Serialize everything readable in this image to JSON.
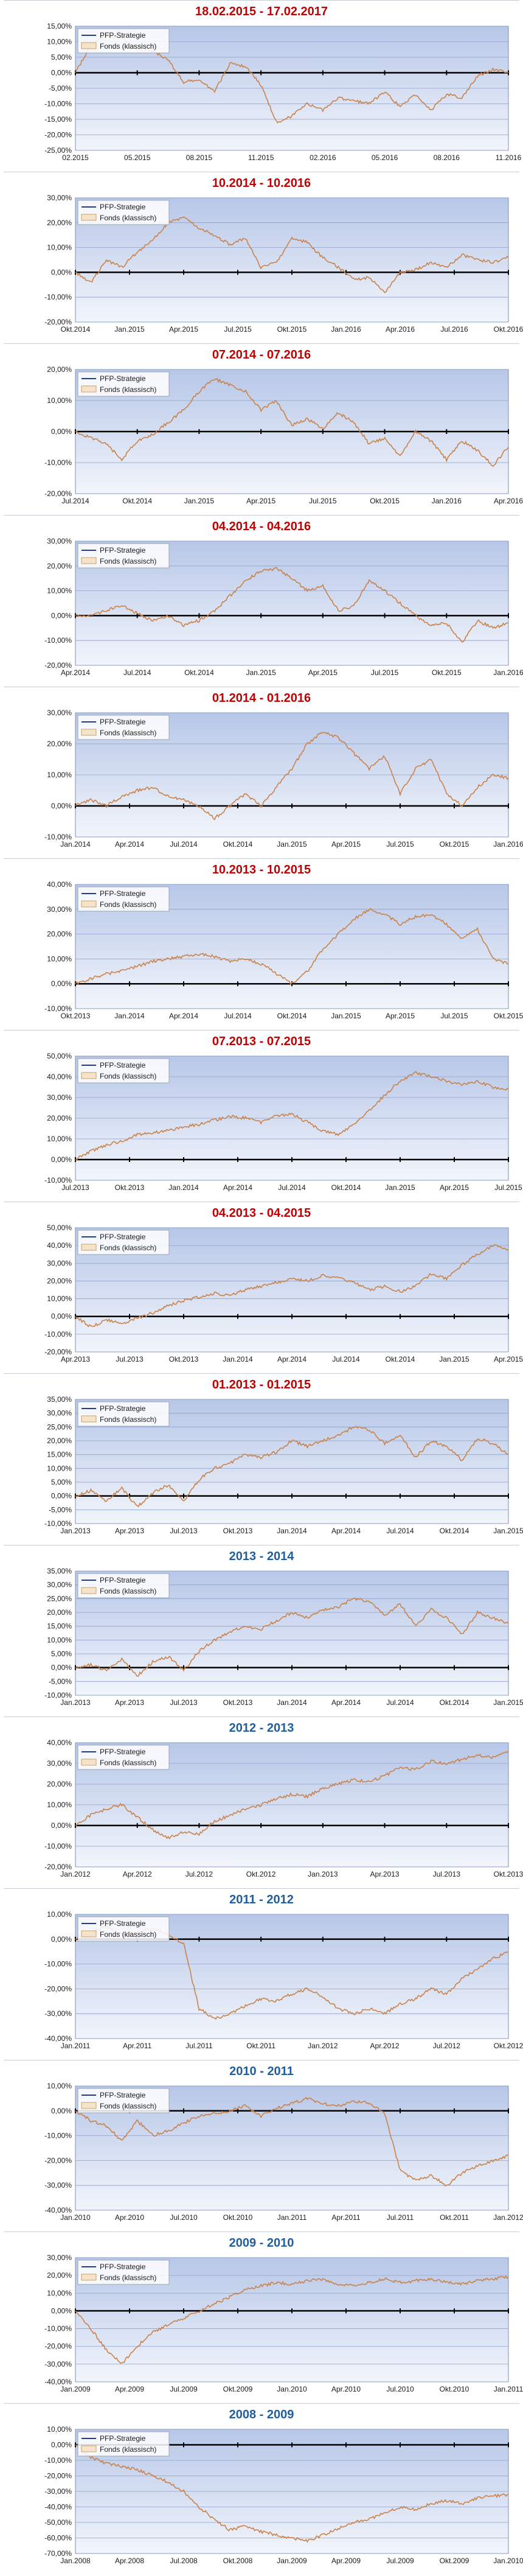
{
  "legend": [
    "PFP-Strategie",
    "Fonds (klassisch)"
  ],
  "colors": {
    "title_recent": "#c00000",
    "title_yearly": "#1f5fa0",
    "series_line": "#c9824a",
    "strategy_line": "#1f3d8a",
    "zero_line": "#000000",
    "grid": "#8ea1c9"
  },
  "chart_data": [
    {
      "type": "line",
      "title": "18.02.2015 - 17.02.2017",
      "title_color": "title_recent",
      "ylim": [
        -25,
        15
      ],
      "step": 5,
      "decimals": 2,
      "xticks": [
        "02.2015",
        "05.2015",
        "08.2015",
        "11.2015",
        "02.2016",
        "05.2016",
        "08.2016",
        "11.2016"
      ],
      "series": [
        {
          "values": [
            0,
            9,
            12,
            11,
            8,
            7,
            4,
            -3,
            -2,
            -6,
            3,
            2,
            -4,
            -16,
            -14,
            -10,
            -12,
            -8,
            -9,
            -10,
            -6,
            -11,
            -7,
            -12,
            -7,
            -8,
            -1,
            1,
            0
          ]
        }
      ]
    },
    {
      "type": "line",
      "title": "10.2014 - 10.2016",
      "title_color": "title_recent",
      "ylim": [
        -20,
        30
      ],
      "step": 10,
      "decimals": 2,
      "xticks": [
        "Okt.2014",
        "Jan.2015",
        "Apr.2015",
        "Jul.2015",
        "Okt.2015",
        "Jan.2016",
        "Apr.2016",
        "Jul.2016",
        "Okt.2016"
      ],
      "series": [
        {
          "values": [
            0,
            -4,
            5,
            2,
            8,
            13,
            20,
            22,
            18,
            15,
            11,
            14,
            2,
            4,
            14,
            12,
            6,
            2,
            -3,
            -2,
            -8,
            0,
            1,
            4,
            2,
            7,
            5,
            4,
            6
          ]
        }
      ]
    },
    {
      "type": "line",
      "title": "07.2014 - 07.2016",
      "title_color": "title_recent",
      "ylim": [
        -20,
        20
      ],
      "step": 10,
      "decimals": 2,
      "xticks": [
        "Jul.2014",
        "Okt.2014",
        "Jan.2015",
        "Apr.2015",
        "Jul.2015",
        "Okt.2015",
        "Jan.2016",
        "Apr.2016"
      ],
      "series": [
        {
          "values": [
            0,
            -2,
            -4,
            -9,
            -3,
            -1,
            3,
            7,
            13,
            17,
            15,
            13,
            7,
            10,
            2,
            4,
            1,
            6,
            3,
            -4,
            -2,
            -8,
            0,
            -3,
            -9,
            -3,
            -6,
            -11,
            -5
          ]
        }
      ]
    },
    {
      "type": "line",
      "title": "04.2014 - 04.2016",
      "title_color": "title_recent",
      "ylim": [
        -20,
        30
      ],
      "step": 10,
      "decimals": 2,
      "xticks": [
        "Apr.2014",
        "Jul.2014",
        "Okt.2014",
        "Jan.2015",
        "Apr.2015",
        "Jul.2015",
        "Okt.2015",
        "Jan.2016"
      ],
      "series": [
        {
          "values": [
            0,
            0,
            2,
            4,
            1,
            -2,
            0,
            -4,
            -2,
            2,
            8,
            14,
            18,
            19,
            15,
            10,
            12,
            2,
            4,
            14,
            10,
            5,
            0,
            -4,
            -3,
            -11,
            -2,
            -5,
            -3
          ]
        }
      ]
    },
    {
      "type": "line",
      "title": "01.2014 - 01.2016",
      "title_color": "title_recent",
      "ylim": [
        -10,
        30
      ],
      "step": 10,
      "decimals": 2,
      "xticks": [
        "Jan.2014",
        "Apr.2014",
        "Jul.2014",
        "Okt.2014",
        "Jan.2015",
        "Apr.2015",
        "Jul.2015",
        "Okt.2015",
        "Jan.2016"
      ],
      "series": [
        {
          "values": [
            0,
            2,
            0,
            3,
            5,
            6,
            3,
            2,
            0,
            -4,
            0,
            4,
            0,
            6,
            12,
            20,
            24,
            22,
            17,
            12,
            16,
            4,
            12,
            15,
            4,
            0,
            6,
            10,
            9
          ]
        }
      ]
    },
    {
      "type": "line",
      "title": "10.2013 - 10.2015",
      "title_color": "title_recent",
      "ylim": [
        -10,
        40
      ],
      "step": 10,
      "decimals": 2,
      "xticks": [
        "Okt.2013",
        "Jan.2014",
        "Apr.2014",
        "Jul.2014",
        "Okt.2014",
        "Jan.2015",
        "Apr.2015",
        "Jul.2015",
        "Okt.2015"
      ],
      "series": [
        {
          "values": [
            0,
            2,
            4,
            5,
            7,
            9,
            10,
            11,
            12,
            11,
            9,
            10,
            8,
            4,
            0,
            5,
            14,
            20,
            26,
            30,
            28,
            24,
            27,
            28,
            24,
            18,
            22,
            10,
            8
          ]
        }
      ]
    },
    {
      "type": "line",
      "title": "07.2013 - 07.2015",
      "title_color": "title_recent",
      "ylim": [
        -10,
        50
      ],
      "step": 10,
      "decimals": 2,
      "xticks": [
        "Jul.2013",
        "Okt.2013",
        "Jan.2014",
        "Apr.2014",
        "Jul.2014",
        "Okt.2014",
        "Jan.2015",
        "Apr.2015",
        "Jul.2015"
      ],
      "series": [
        {
          "values": [
            0,
            4,
            7,
            9,
            12,
            13,
            14,
            16,
            17,
            19,
            21,
            20,
            18,
            21,
            22,
            18,
            14,
            12,
            17,
            24,
            31,
            38,
            42,
            40,
            38,
            36,
            38,
            35,
            34
          ]
        }
      ]
    },
    {
      "type": "line",
      "title": "04.2013 - 04.2015",
      "title_color": "title_recent",
      "ylim": [
        -20,
        50
      ],
      "step": 10,
      "decimals": 2,
      "xticks": [
        "Apr.2013",
        "Jul.2013",
        "Okt.2013",
        "Jan.2014",
        "Apr.2014",
        "Jul.2014",
        "Okt.2014",
        "Jan.2015",
        "Apr.2015"
      ],
      "series": [
        {
          "values": [
            0,
            -6,
            -2,
            -4,
            -1,
            2,
            6,
            9,
            11,
            13,
            12,
            15,
            17,
            19,
            21,
            20,
            23,
            22,
            19,
            15,
            17,
            14,
            17,
            24,
            21,
            29,
            35,
            40,
            38
          ]
        }
      ]
    },
    {
      "type": "line",
      "title": "01.2013 - 01.2015",
      "title_color": "title_recent",
      "ylim": [
        -10,
        35
      ],
      "step": 5,
      "decimals": 2,
      "xticks": [
        "Jan.2013",
        "Apr.2013",
        "Jul.2013",
        "Okt.2013",
        "Jan.2014",
        "Apr.2014",
        "Jul.2014",
        "Okt.2014",
        "Jan.2015"
      ],
      "series": [
        {
          "values": [
            0,
            2,
            -2,
            3,
            -4,
            1,
            4,
            -2,
            6,
            10,
            12,
            15,
            14,
            16,
            20,
            18,
            20,
            22,
            25,
            24,
            19,
            22,
            14,
            20,
            18,
            13,
            21,
            19,
            15
          ]
        }
      ]
    },
    {
      "type": "line",
      "title": "2013 - 2014",
      "title_color": "title_yearly",
      "ylim": [
        -10,
        35
      ],
      "step": 5,
      "decimals": 2,
      "xticks": [
        "Jan.2013",
        "Apr.2013",
        "Jul.2013",
        "Okt.2013",
        "Jan.2014",
        "Apr.2014",
        "Jul.2014",
        "Okt.2014",
        "Jan.2015"
      ],
      "series": [
        {
          "values": [
            0,
            1,
            -1,
            3,
            -3,
            2,
            4,
            -1,
            6,
            10,
            13,
            15,
            14,
            17,
            20,
            18,
            21,
            22,
            25,
            24,
            19,
            23,
            15,
            21,
            18,
            12,
            20,
            18,
            16
          ]
        }
      ]
    },
    {
      "type": "line",
      "title": "2012 - 2013",
      "title_color": "title_yearly",
      "ylim": [
        -20,
        40
      ],
      "step": 10,
      "decimals": 2,
      "xticks": [
        "Jan.2012",
        "Apr.2012",
        "Jul.2012",
        "Okt.2012",
        "Jan.2013",
        "Apr.2013",
        "Jul.2013",
        "Okt.2013"
      ],
      "series": [
        {
          "values": [
            0,
            5,
            8,
            10,
            4,
            -2,
            -6,
            -3,
            -4,
            2,
            5,
            8,
            10,
            13,
            15,
            14,
            18,
            20,
            22,
            21,
            24,
            28,
            27,
            31,
            30,
            32,
            34,
            33,
            36
          ]
        }
      ]
    },
    {
      "type": "line",
      "title": "2011 - 2012",
      "title_color": "title_yearly",
      "ylim": [
        -40,
        10
      ],
      "step": 10,
      "decimals": 2,
      "xticks": [
        "Jan.2011",
        "Apr.2011",
        "Jul.2011",
        "Okt.2011",
        "Jan.2012",
        "Apr.2012",
        "Jul.2012",
        "Okt.2012"
      ],
      "series": [
        {
          "values": [
            0,
            3,
            5,
            2,
            3,
            4,
            2,
            -2,
            -28,
            -32,
            -30,
            -27,
            -24,
            -25,
            -22,
            -20,
            -23,
            -28,
            -30,
            -28,
            -30,
            -26,
            -24,
            -20,
            -22,
            -16,
            -12,
            -8,
            -5
          ]
        }
      ]
    },
    {
      "type": "line",
      "title": "2010 - 2011",
      "title_color": "title_yearly",
      "ylim": [
        -40,
        10
      ],
      "step": 10,
      "decimals": 2,
      "xticks": [
        "Jan.2010",
        "Apr.2010",
        "Jul.2010",
        "Okt.2010",
        "Jan.2011",
        "Apr.2011",
        "Jul.2011",
        "Okt.2011",
        "Jan.2012"
      ],
      "series": [
        {
          "values": [
            0,
            -4,
            -6,
            -12,
            -4,
            -10,
            -8,
            -5,
            -2,
            -1,
            0,
            2,
            -2,
            1,
            3,
            5,
            3,
            2,
            4,
            3,
            -1,
            -24,
            -28,
            -26,
            -30,
            -25,
            -22,
            -20,
            -18
          ]
        }
      ]
    },
    {
      "type": "line",
      "title": "2009 - 2010",
      "title_color": "title_yearly",
      "ylim": [
        -40,
        30
      ],
      "step": 10,
      "decimals": 2,
      "xticks": [
        "Jan.2009",
        "Apr.2009",
        "Jul.2009",
        "Okt.2009",
        "Jan.2010",
        "Apr.2010",
        "Jul.2010",
        "Okt.2010",
        "Jan.2011"
      ],
      "series": [
        {
          "values": [
            0,
            -10,
            -22,
            -30,
            -20,
            -12,
            -8,
            -4,
            0,
            4,
            8,
            12,
            14,
            16,
            15,
            17,
            18,
            15,
            14,
            16,
            18,
            16,
            17,
            18,
            16,
            15,
            17,
            18,
            19
          ]
        }
      ]
    },
    {
      "type": "line",
      "title": "2008 - 2009",
      "title_color": "title_yearly",
      "ylim": [
        -70,
        10
      ],
      "step": 10,
      "decimals": 2,
      "xticks": [
        "Jan.2008",
        "Apr.2008",
        "Jul.2008",
        "Okt.2008",
        "Jan.2009",
        "Apr.2009",
        "Jul.2009",
        "Okt.2009",
        "Jan.2010"
      ],
      "series": [
        {
          "values": [
            0,
            -8,
            -12,
            -14,
            -16,
            -20,
            -24,
            -30,
            -40,
            -48,
            -55,
            -52,
            -56,
            -58,
            -60,
            -62,
            -58,
            -54,
            -50,
            -48,
            -44,
            -40,
            -42,
            -38,
            -36,
            -38,
            -34,
            -33,
            -32
          ]
        }
      ]
    }
  ]
}
